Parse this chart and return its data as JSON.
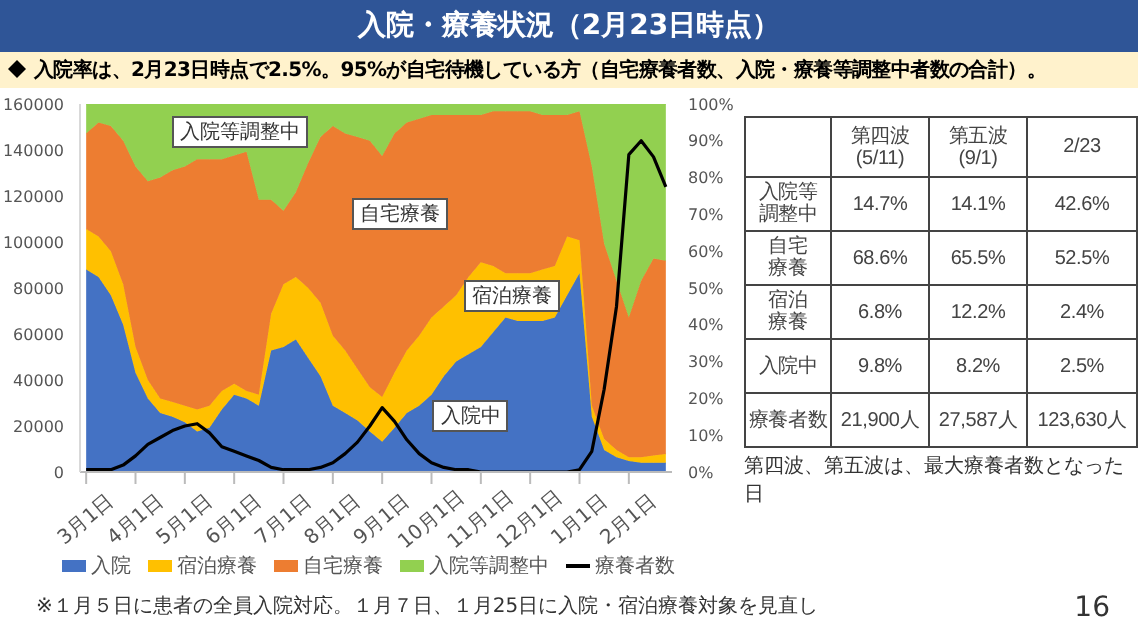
{
  "chart_data": {
    "type": "area",
    "title": "入院・療養状況（2月23日時点）",
    "subtitle": "入院率は、2月23日時点で2.5%。95%が自宅待機している方（自宅療養者数、入院・療養等調整中者数の合計）。",
    "stacked": true,
    "legend": "bottom",
    "grid": false,
    "categories": [
      "3月1日",
      null,
      null,
      null,
      "4月1日",
      null,
      null,
      null,
      "5月1日",
      null,
      null,
      null,
      "6月1日",
      null,
      null,
      null,
      "7月1日",
      null,
      null,
      null,
      "8月1日",
      null,
      null,
      null,
      "9月1日",
      null,
      null,
      null,
      "10月1日",
      null,
      null,
      null,
      "11月1日",
      null,
      null,
      null,
      "12月1日",
      null,
      null,
      null,
      "1月1日",
      null,
      null,
      null,
      "2月1日",
      null,
      null,
      null
    ],
    "ylim": [
      0,
      160000
    ],
    "yticks": [
      0,
      20000,
      40000,
      60000,
      80000,
      100000,
      120000,
      140000,
      160000
    ],
    "y2lim": [
      0,
      100
    ],
    "y2ticks": [
      {
        "value": 0,
        "label": "0%"
      },
      {
        "value": 10,
        "label": "10%"
      },
      {
        "value": 20,
        "label": "20%"
      },
      {
        "value": 30,
        "label": "30%"
      },
      {
        "value": 40,
        "label": "40%"
      },
      {
        "value": 50,
        "label": "50%"
      },
      {
        "value": 60,
        "label": "60%"
      },
      {
        "value": 70,
        "label": "70%"
      },
      {
        "value": 80,
        "label": "80%"
      },
      {
        "value": 90,
        "label": "90%"
      },
      {
        "value": 100,
        "label": "100%"
      }
    ],
    "series": [
      {
        "name": "入院",
        "color": "#4472c4",
        "axis": "y2",
        "values": [
          55,
          53,
          48,
          40,
          27,
          20,
          16,
          15,
          13.5,
          11,
          12,
          17,
          21,
          20,
          18,
          33,
          34,
          36,
          31,
          26,
          18,
          16,
          14,
          11,
          8.2,
          12,
          16,
          18,
          21,
          26,
          30,
          32,
          34,
          38,
          42,
          41,
          41,
          41,
          42,
          48,
          54,
          15,
          6,
          4,
          3,
          2.5,
          2.5,
          2.5
        ]
      },
      {
        "name": "宿泊療養",
        "color": "#ffc000",
        "axis": "y2",
        "values": [
          11,
          11,
          12,
          11,
          7,
          5,
          4,
          4,
          4.5,
          6,
          6,
          5,
          3,
          2,
          3,
          10,
          17,
          17,
          19,
          20,
          19,
          17,
          14,
          12,
          12.2,
          15,
          17,
          19,
          21,
          19,
          18,
          21,
          23,
          18,
          12,
          13,
          13,
          14,
          14,
          16,
          9,
          3,
          3,
          2,
          1,
          1.5,
          2,
          2.4
        ]
      },
      {
        "name": "自宅療養",
        "color": "#ed7d31",
        "axis": "y2",
        "values": [
          26,
          31,
          34,
          39,
          49,
          54,
          60,
          63,
          65,
          68,
          67,
          63,
          62,
          65,
          53,
          31,
          20,
          23,
          34,
          45,
          57,
          59,
          63,
          67,
          65.5,
          65,
          62,
          59,
          55,
          52,
          49,
          44,
          40,
          42,
          44,
          44,
          44,
          42,
          41,
          33,
          35,
          65,
          53,
          46,
          38,
          48,
          53.5,
          52.5
        ]
      },
      {
        "name": "入院等調整中",
        "color": "#92d050",
        "axis": "y2",
        "values": [
          8,
          5,
          6,
          10,
          17,
          21,
          20,
          18,
          17,
          15,
          15,
          15,
          14,
          13,
          26,
          26,
          29,
          24,
          16,
          9,
          6,
          8,
          9,
          10,
          14.1,
          8,
          5,
          4,
          3,
          3,
          3,
          3,
          3,
          2,
          2,
          2,
          2,
          3,
          3,
          3,
          2,
          17,
          38,
          48,
          58,
          48,
          42,
          42.6
        ]
      },
      {
        "name": "療養者数",
        "type": "line",
        "color": "#000000",
        "axis": "y",
        "marker": "none",
        "values": [
          1000,
          1000,
          1000,
          3000,
          7000,
          12000,
          15000,
          18000,
          20000,
          21000,
          17000,
          11000,
          9000,
          7000,
          5000,
          2000,
          1000,
          1000,
          1000,
          2000,
          4000,
          8000,
          13000,
          20000,
          28000,
          22000,
          14000,
          8000,
          4000,
          2000,
          1000,
          1000,
          0,
          0,
          0,
          0,
          0,
          0,
          0,
          0,
          1000,
          9000,
          36000,
          72000,
          138000,
          144000,
          137000,
          124000
        ]
      }
    ],
    "annotations": [
      "入院等調整中",
      "自宅療養",
      "宿泊療養",
      "入院中",
      "第四波\n(5/11)",
      "第五波\n(9/1)",
      "2/23",
      "入院等調整中",
      "14.7%",
      "14.1%",
      "42.6%",
      "自宅療養",
      "68.6%",
      "65.5%",
      "52.5%",
      "宿泊療養",
      "6.8%",
      "12.2%",
      "2.4%",
      "入院中",
      "9.8%",
      "8.2%",
      "2.5%",
      "療養者数",
      "21,900人",
      "27,587人",
      "123,630人",
      "第四波、第五波は、最大療養者数となった日",
      "※１月５日に患者の全員入院対応。１月７日、１月25日に入院・宿泊療養対象を見直し",
      "16"
    ]
  }
}
